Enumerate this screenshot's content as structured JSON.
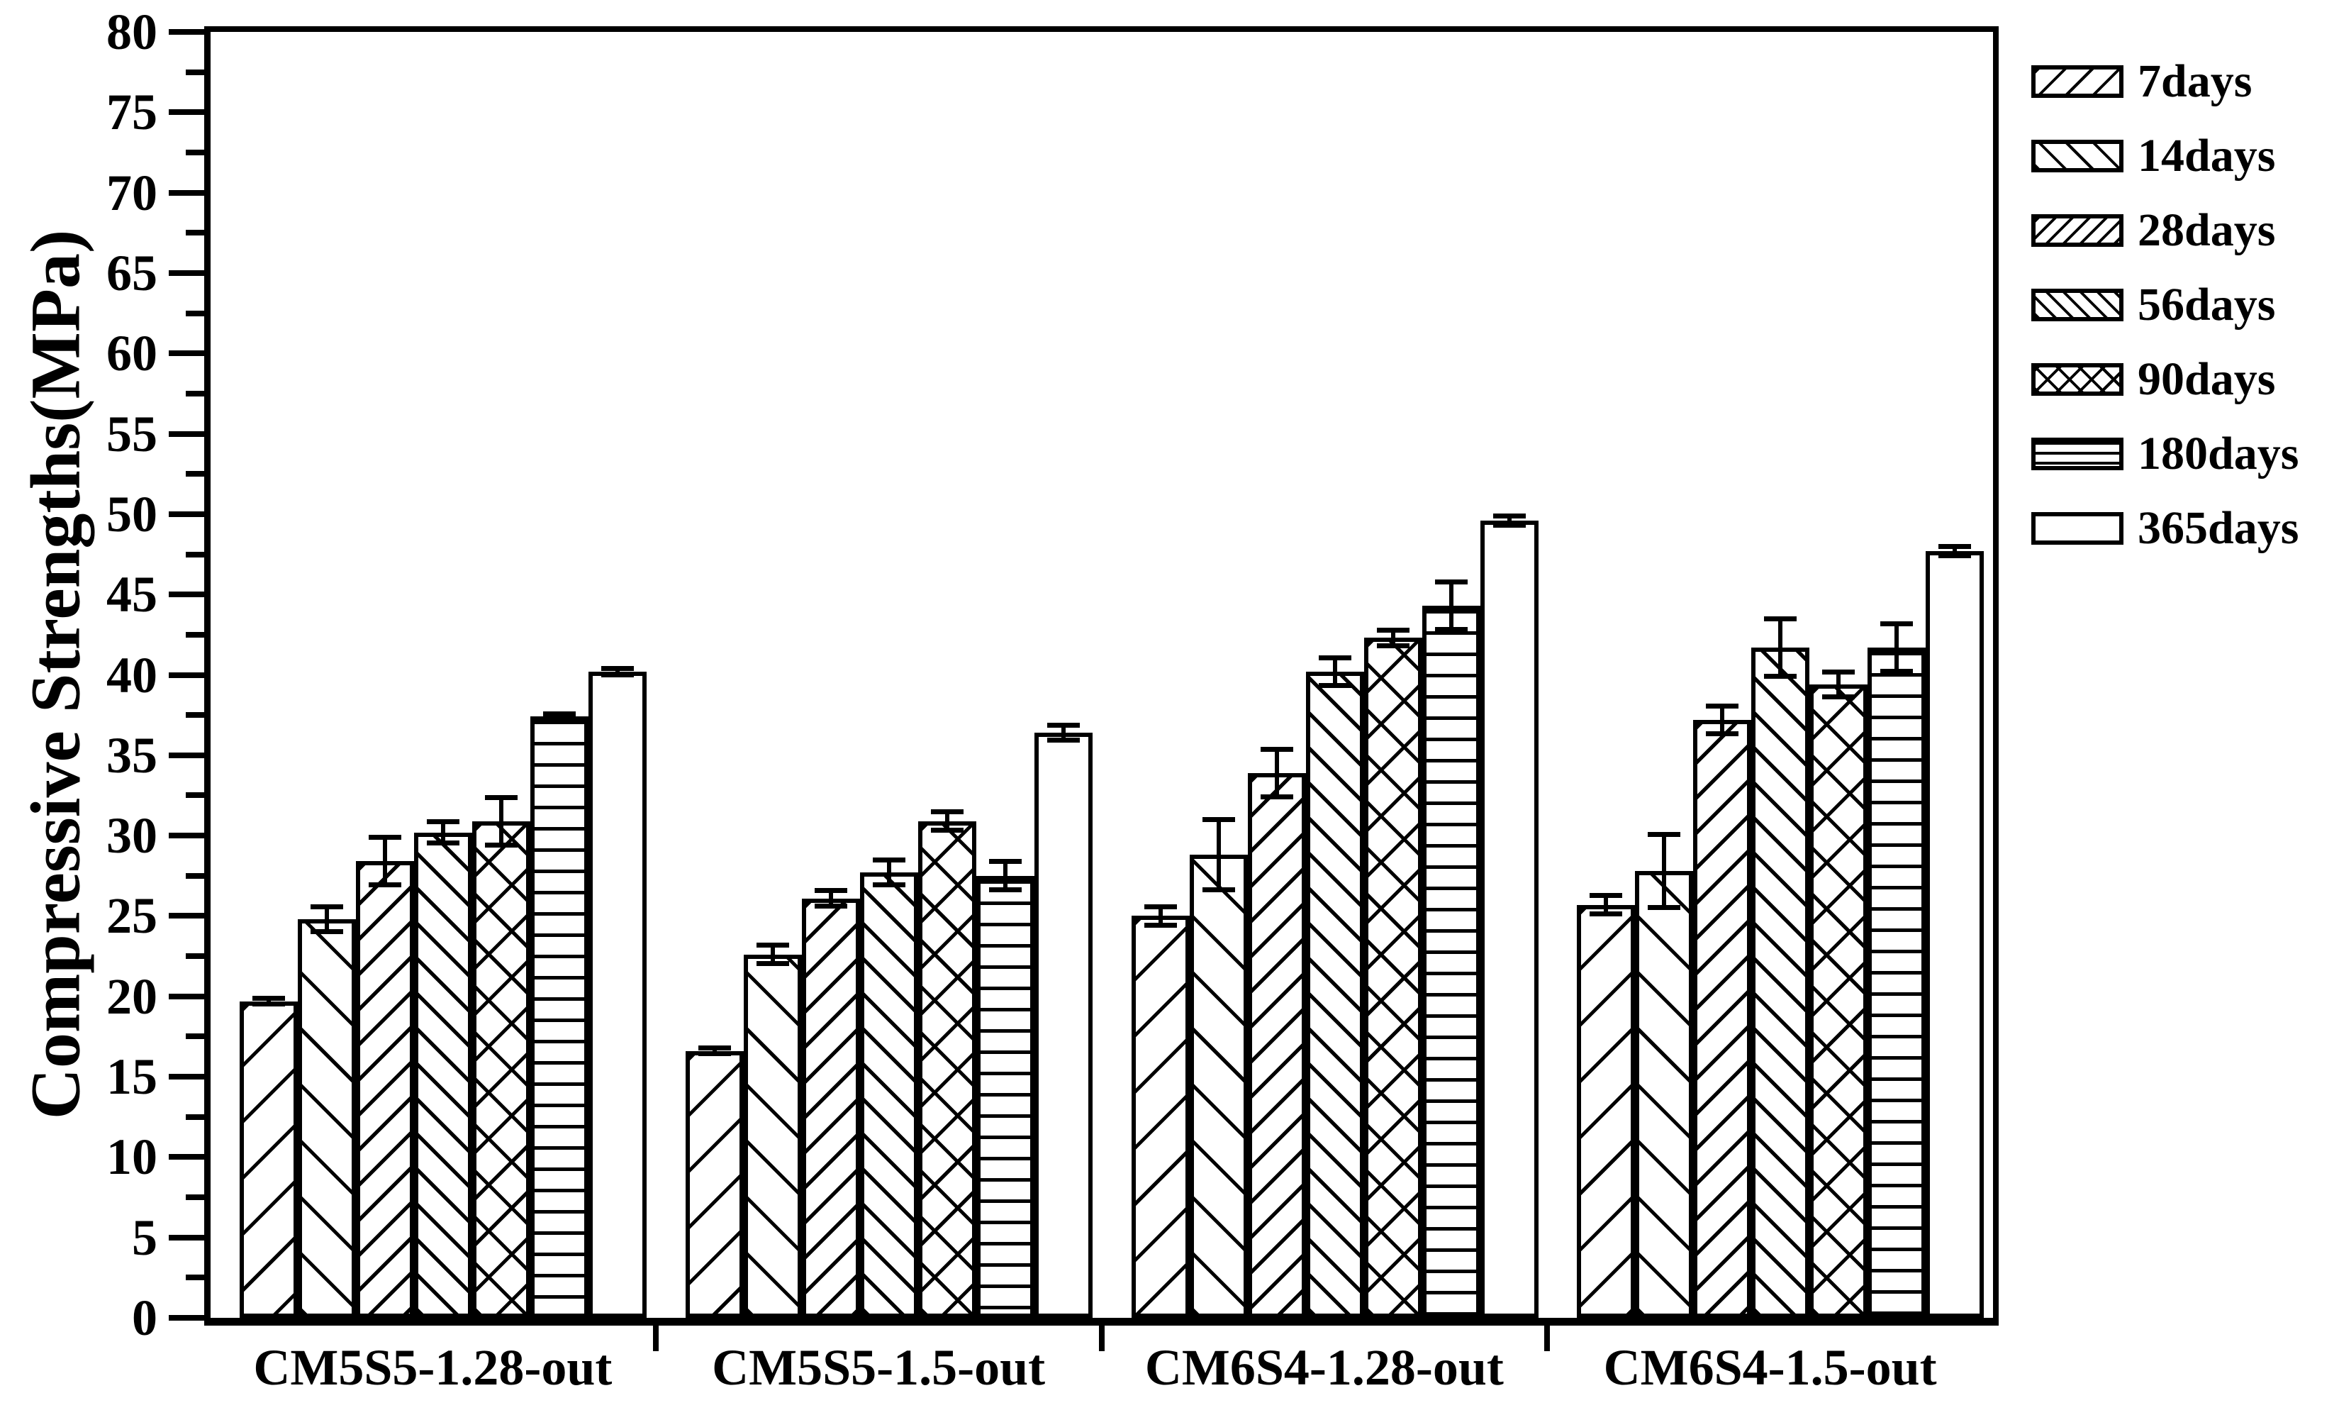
{
  "chart_data": {
    "type": "bar",
    "title": "",
    "xlabel": "",
    "ylabel": "Compressive Strengths(MPa)",
    "ylim": [
      0,
      80
    ],
    "ytick_major_step": 5,
    "ytick_minor_step": 2.5,
    "yticks_labeled": [
      0,
      5,
      10,
      15,
      20,
      25,
      30,
      35,
      40,
      45,
      50,
      55,
      60,
      65,
      70,
      75,
      80
    ],
    "grid": false,
    "legend_position": "outside-upper-right",
    "background_color": "#ffffff",
    "line_color": "#000000",
    "bar_fill_color": "#ffffff",
    "error_bars": true,
    "categories": [
      "CM5S5-1.28-out",
      "CM5S5-1.5-out",
      "CM6S4-1.28-out",
      "CM6S4-1.5-out"
    ],
    "series": [
      {
        "name": "7days",
        "hatch": "diagonal-up-sparse",
        "values": [
          19.7,
          16.6,
          25.0,
          25.7
        ],
        "errors": [
          0.2,
          0.2,
          0.6,
          0.6
        ]
      },
      {
        "name": "14days",
        "hatch": "diagonal-down-sparse",
        "values": [
          24.8,
          22.6,
          28.8,
          27.8
        ],
        "errors": [
          0.8,
          0.6,
          2.2,
          2.3
        ]
      },
      {
        "name": "28days",
        "hatch": "diagonal-up-dense",
        "values": [
          28.4,
          26.1,
          33.9,
          37.2
        ],
        "errors": [
          1.5,
          0.5,
          1.5,
          0.9
        ]
      },
      {
        "name": "56days",
        "hatch": "diagonal-down-dense",
        "values": [
          30.2,
          27.7,
          40.2,
          41.7
        ],
        "errors": [
          0.7,
          0.8,
          0.9,
          1.8
        ]
      },
      {
        "name": "90days",
        "hatch": "crosshatch",
        "values": [
          30.9,
          30.9,
          42.3,
          39.4
        ],
        "errors": [
          1.5,
          0.6,
          0.5,
          0.8
        ]
      },
      {
        "name": "180days",
        "hatch": "horizontal-lines",
        "values": [
          37.4,
          27.5,
          44.3,
          41.7
        ],
        "errors": [
          0.2,
          0.9,
          1.5,
          1.5
        ]
      },
      {
        "name": "365days",
        "hatch": "none",
        "values": [
          40.2,
          36.4,
          49.6,
          47.7
        ],
        "errors": [
          0.2,
          0.5,
          0.3,
          0.3
        ]
      }
    ]
  }
}
